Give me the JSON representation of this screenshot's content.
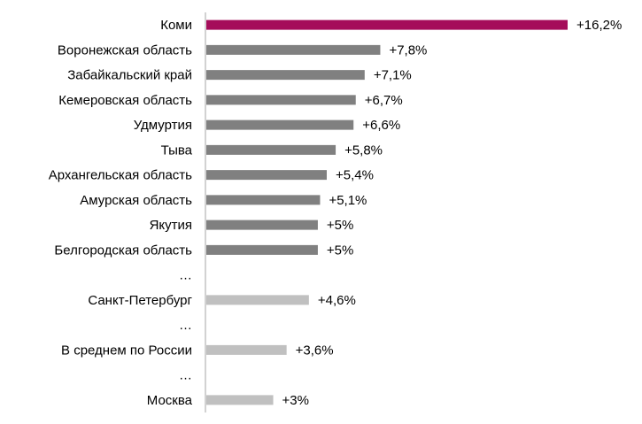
{
  "chart_data": {
    "type": "bar",
    "orientation": "horizontal",
    "grid": false,
    "legend": "none",
    "colors": {
      "highlight": "#a50d5a",
      "dark": "#808080",
      "light": "#c0c0c0",
      "axis": "#a6a6a6"
    },
    "rows": [
      {
        "category": "Коми",
        "value": 16.2,
        "label": "+16,2%",
        "style": "highlight"
      },
      {
        "category": "Воронежская область",
        "value": 7.8,
        "label": "+7,8%",
        "style": "dark"
      },
      {
        "category": "Забайкальский край",
        "value": 7.1,
        "label": "+7,1%",
        "style": "dark"
      },
      {
        "category": "Кемеровская область",
        "value": 6.7,
        "label": "+6,7%",
        "style": "dark"
      },
      {
        "category": "Удмуртия",
        "value": 6.6,
        "label": "+6,6%",
        "style": "dark"
      },
      {
        "category": "Тыва",
        "value": 5.8,
        "label": "+5,8%",
        "style": "dark"
      },
      {
        "category": "Архангельская область",
        "value": 5.4,
        "label": "+5,4%",
        "style": "dark"
      },
      {
        "category": "Амурская область",
        "value": 5.1,
        "label": "+5,1%",
        "style": "dark"
      },
      {
        "category": "Якутия",
        "value": 5.0,
        "label": "+5%",
        "style": "dark"
      },
      {
        "category": "Белгородская область",
        "value": 5.0,
        "label": "+5%",
        "style": "dark"
      },
      {
        "category": "…",
        "value": null,
        "label": "",
        "style": "none"
      },
      {
        "category": "Санкт-Петербург",
        "value": 4.6,
        "label": "+4,6%",
        "style": "light"
      },
      {
        "category": "…",
        "value": null,
        "label": "",
        "style": "none"
      },
      {
        "category": "В среднем по России",
        "value": 3.6,
        "label": "+3,6%",
        "style": "light"
      },
      {
        "category": "…",
        "value": null,
        "label": "",
        "style": "none"
      },
      {
        "category": "Москва",
        "value": 3.0,
        "label": "+3%",
        "style": "light"
      }
    ]
  }
}
